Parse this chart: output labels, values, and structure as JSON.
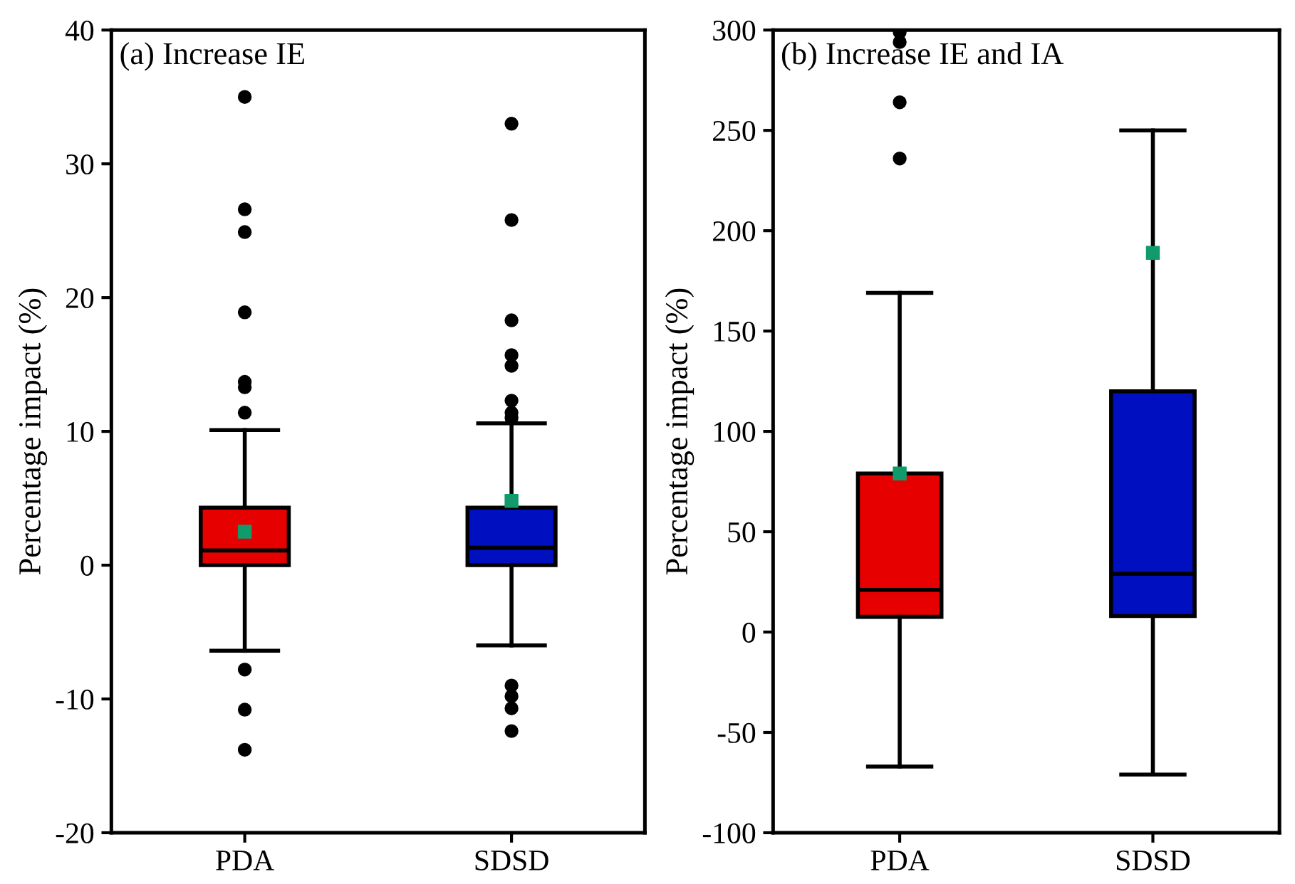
{
  "chart_data": [
    {
      "type": "box",
      "title": "(a) Increase IE",
      "ylabel": "Percentage impact (%)",
      "categories": [
        "PDA",
        "SDSD"
      ],
      "colors": [
        "#e60000",
        "#0010c0"
      ],
      "ylim": [
        -20,
        40
      ],
      "yticks": [
        -20,
        -10,
        0,
        10,
        20,
        30,
        40
      ],
      "boxes": [
        {
          "low": -6.4,
          "q1": 0,
          "median": 1.1,
          "q3": 4.3,
          "high": 10.1,
          "mean": 2.5,
          "outliers": [
            35,
            26.6,
            24.9,
            18.9,
            13.7,
            13.3,
            11.4,
            -7.8,
            -10.8,
            -13.8
          ]
        },
        {
          "low": -6.0,
          "q1": 0,
          "median": 1.3,
          "q3": 4.3,
          "high": 10.6,
          "mean": 4.8,
          "outliers": [
            33,
            25.8,
            18.3,
            15.7,
            14.9,
            12.3,
            11.4,
            11.0,
            -9.0,
            -9.8,
            -10.7,
            -12.4
          ]
        }
      ]
    },
    {
      "type": "box",
      "title": "(b) Increase IE and IA",
      "ylabel": "Percentage impact (%)",
      "categories": [
        "PDA",
        "SDSD"
      ],
      "colors": [
        "#e60000",
        "#0010c0"
      ],
      "ylim": [
        -100,
        300
      ],
      "yticks": [
        -100,
        -50,
        0,
        50,
        100,
        150,
        200,
        250,
        300
      ],
      "boxes": [
        {
          "low": -67,
          "q1": 7.6,
          "median": 21,
          "q3": 79,
          "high": 169,
          "mean": 79,
          "outliers": [
            236,
            264,
            294,
            299
          ]
        },
        {
          "low": -71,
          "q1": 8,
          "median": 29,
          "q3": 120,
          "high": 250,
          "mean": 189
        }
      ]
    }
  ]
}
